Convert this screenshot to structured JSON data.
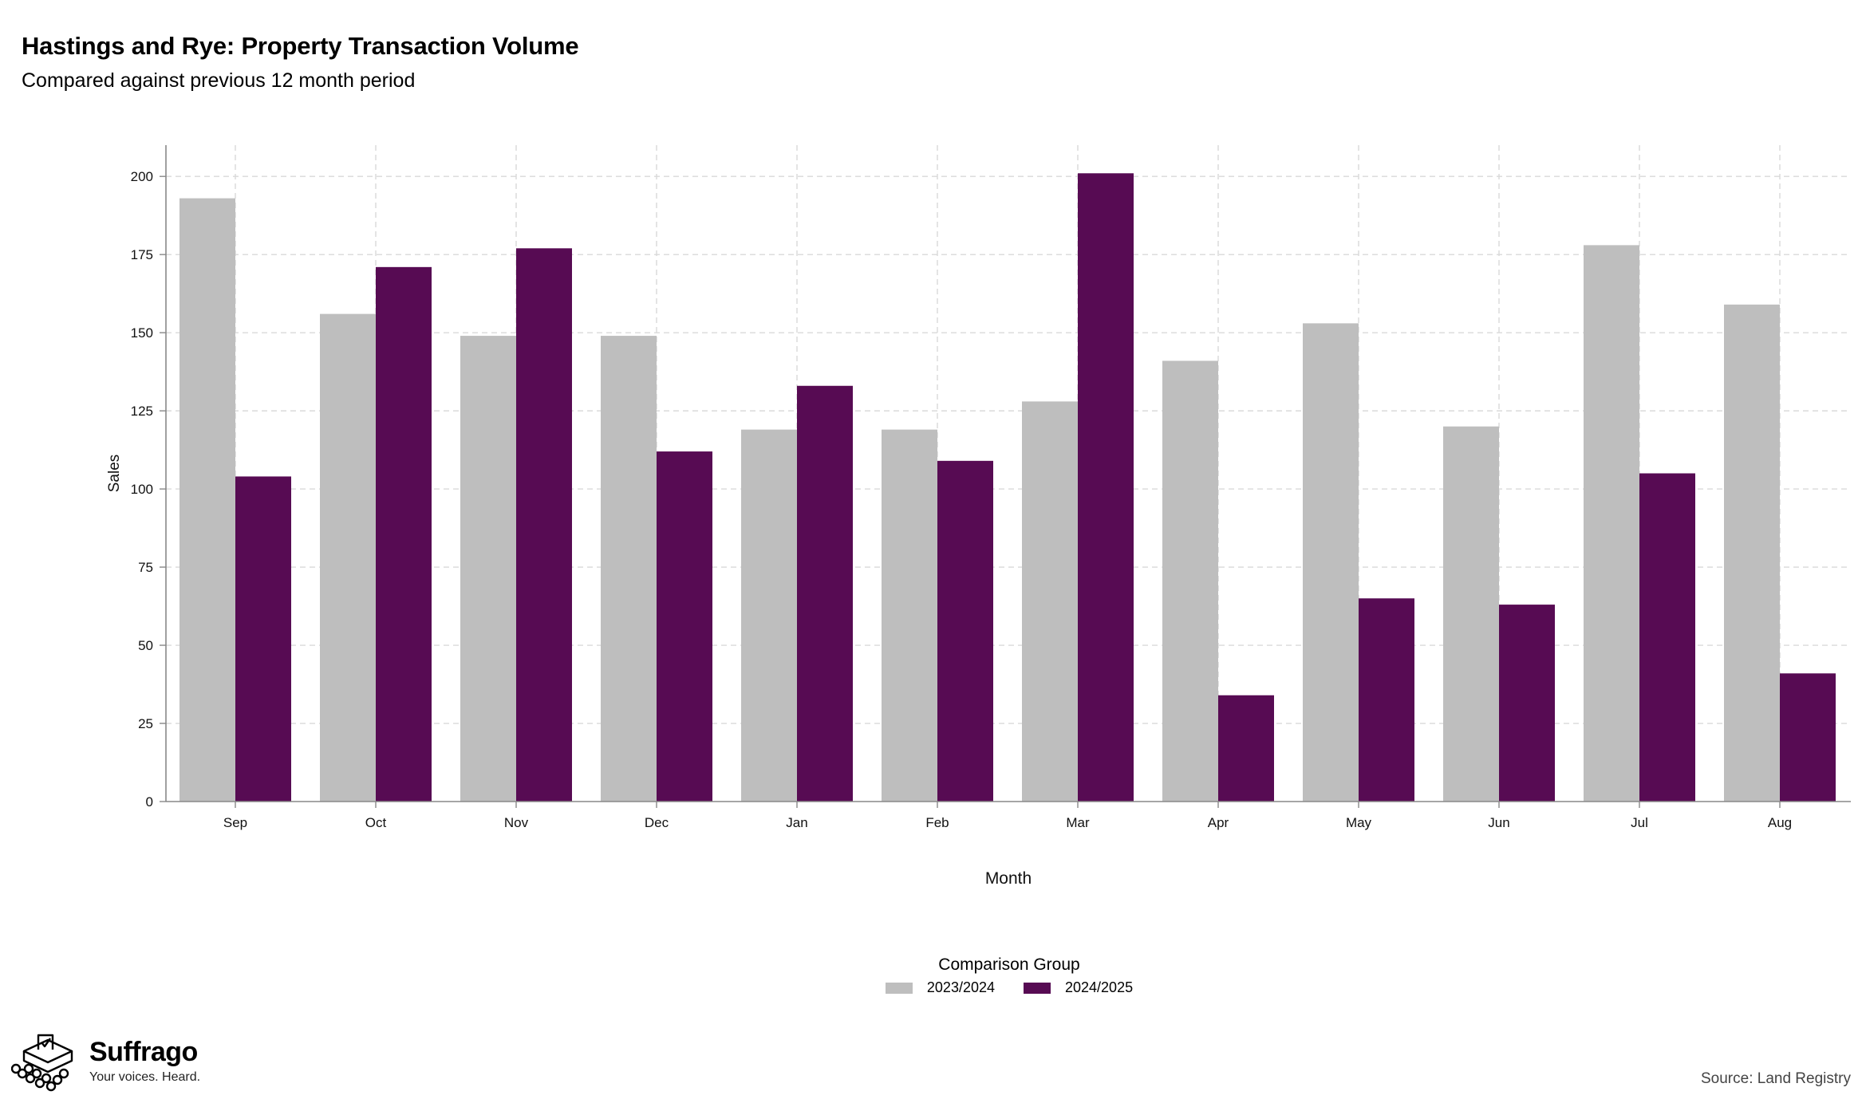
{
  "header": {
    "title": "Hastings and Rye: Property Transaction Volume",
    "subtitle": "Compared against previous 12 month period"
  },
  "chart_data": {
    "type": "bar",
    "title": "Hastings and Rye: Property Transaction Volume",
    "subtitle": "Compared against previous 12 month period",
    "xlabel": "Month",
    "ylabel": "Sales",
    "categories": [
      "Sep",
      "Oct",
      "Nov",
      "Dec",
      "Jan",
      "Feb",
      "Mar",
      "Apr",
      "May",
      "Jun",
      "Jul",
      "Aug"
    ],
    "series": [
      {
        "name": "2023/2024",
        "color": "#bebebe",
        "values": [
          193,
          156,
          149,
          149,
          119,
          119,
          128,
          141,
          153,
          120,
          178,
          159
        ]
      },
      {
        "name": "2024/2025",
        "color": "#570b53",
        "values": [
          104,
          171,
          177,
          112,
          133,
          109,
          201,
          34,
          65,
          63,
          105,
          41
        ]
      }
    ],
    "ylim": [
      0,
      210
    ],
    "yticks": [
      0,
      25,
      50,
      75,
      100,
      125,
      150,
      175,
      200
    ],
    "grid": true,
    "legend_title": "Comparison Group",
    "legend_position": "bottom"
  },
  "branding": {
    "name": "Suffrago",
    "tagline": "Your voices. Heard.",
    "icon": "ballot-box-icon"
  },
  "footer": {
    "source": "Source: Land Registry"
  }
}
